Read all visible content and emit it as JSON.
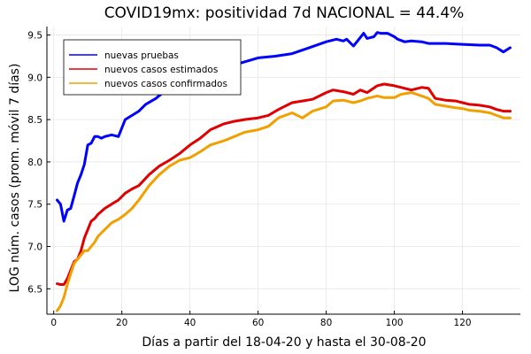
{
  "chart_data": {
    "type": "line",
    "title": "COVID19mx: positividad 7d NACIONAL = 44.4%",
    "xlabel": "Días a partir del 18-04-20 y hasta el 30-08-20",
    "ylabel": "LOG núm. casos (prom. móvil 7 días)",
    "xlim": [
      -2,
      137
    ],
    "ylim": [
      6.2,
      9.6
    ],
    "xticks": [
      0,
      20,
      40,
      60,
      80,
      100,
      120
    ],
    "yticks": [
      6.5,
      7.0,
      7.5,
      8.0,
      8.5,
      9.0,
      9.5
    ],
    "ytick_labels": [
      "6.5",
      "7.0",
      "7.5",
      "8.0",
      "8.5",
      "9.0",
      "9.5"
    ],
    "grid": true,
    "legend_position": "top-left",
    "series": [
      {
        "name": "nuevas pruebas",
        "color": "#0000ff",
        "x": [
          1,
          2,
          3,
          4,
          5,
          6,
          7,
          8,
          9,
          10,
          11,
          12,
          13,
          14,
          15,
          17,
          19,
          21,
          23,
          25,
          27,
          30,
          33,
          36,
          40,
          45,
          50,
          55,
          60,
          65,
          70,
          75,
          80,
          83,
          85,
          86,
          88,
          90,
          91,
          92,
          94,
          95,
          96,
          98,
          100,
          101,
          103,
          105,
          108,
          110,
          115,
          120,
          125,
          128,
          130,
          132,
          134
        ],
        "values": [
          7.55,
          7.5,
          7.3,
          7.43,
          7.45,
          7.6,
          7.75,
          7.85,
          7.97,
          8.2,
          8.22,
          8.3,
          8.3,
          8.28,
          8.3,
          8.32,
          8.3,
          8.5,
          8.55,
          8.6,
          8.68,
          8.75,
          8.85,
          8.85,
          8.95,
          9.05,
          9.13,
          9.17,
          9.23,
          9.25,
          9.28,
          9.35,
          9.42,
          9.45,
          9.43,
          9.45,
          9.37,
          9.47,
          9.52,
          9.46,
          9.48,
          9.53,
          9.52,
          9.52,
          9.48,
          9.45,
          9.42,
          9.43,
          9.42,
          9.4,
          9.4,
          9.39,
          9.38,
          9.38,
          9.35,
          9.3,
          9.35
        ]
      },
      {
        "name": "nuevos casos estimados",
        "color": "#e00000",
        "x": [
          1,
          2,
          3,
          4,
          5,
          6,
          7,
          8,
          9,
          10,
          11,
          12,
          13,
          15,
          17,
          19,
          21,
          23,
          25,
          28,
          31,
          34,
          37,
          40,
          43,
          46,
          50,
          53,
          56,
          60,
          63,
          66,
          70,
          73,
          76,
          80,
          82,
          85,
          88,
          90,
          92,
          95,
          97,
          100,
          102,
          105,
          108,
          110,
          112,
          115,
          118,
          120,
          122,
          125,
          128,
          130,
          132,
          134
        ],
        "values": [
          6.56,
          6.55,
          6.55,
          6.62,
          6.72,
          6.82,
          6.85,
          6.95,
          7.1,
          7.2,
          7.3,
          7.33,
          7.38,
          7.45,
          7.5,
          7.55,
          7.63,
          7.68,
          7.72,
          7.85,
          7.95,
          8.02,
          8.1,
          8.2,
          8.28,
          8.38,
          8.45,
          8.48,
          8.5,
          8.52,
          8.55,
          8.62,
          8.7,
          8.72,
          8.74,
          8.82,
          8.85,
          8.83,
          8.8,
          8.85,
          8.82,
          8.9,
          8.92,
          8.9,
          8.88,
          8.85,
          8.88,
          8.87,
          8.75,
          8.73,
          8.72,
          8.7,
          8.68,
          8.67,
          8.65,
          8.62,
          8.6,
          8.6
        ]
      },
      {
        "name": "nuevos casos confirmados",
        "color": "#f0a000",
        "x": [
          1,
          2,
          3,
          4,
          5,
          6,
          7,
          8,
          9,
          10,
          11,
          12,
          13,
          15,
          17,
          19,
          21,
          23,
          25,
          28,
          31,
          34,
          37,
          40,
          43,
          46,
          50,
          53,
          56,
          60,
          63,
          66,
          70,
          73,
          76,
          80,
          82,
          85,
          88,
          90,
          92,
          95,
          97,
          100,
          102,
          105,
          108,
          110,
          112,
          115,
          118,
          120,
          122,
          125,
          128,
          130,
          132,
          134
        ],
        "values": [
          6.24,
          6.3,
          6.4,
          6.55,
          6.68,
          6.8,
          6.85,
          6.9,
          6.95,
          6.95,
          7.0,
          7.05,
          7.12,
          7.2,
          7.28,
          7.32,
          7.38,
          7.45,
          7.55,
          7.72,
          7.85,
          7.95,
          8.02,
          8.05,
          8.12,
          8.2,
          8.25,
          8.3,
          8.35,
          8.38,
          8.42,
          8.52,
          8.58,
          8.52,
          8.6,
          8.65,
          8.72,
          8.73,
          8.7,
          8.72,
          8.75,
          8.78,
          8.76,
          8.76,
          8.8,
          8.82,
          8.78,
          8.75,
          8.68,
          8.66,
          8.64,
          8.63,
          8.61,
          8.6,
          8.58,
          8.55,
          8.52,
          8.52
        ]
      }
    ]
  }
}
